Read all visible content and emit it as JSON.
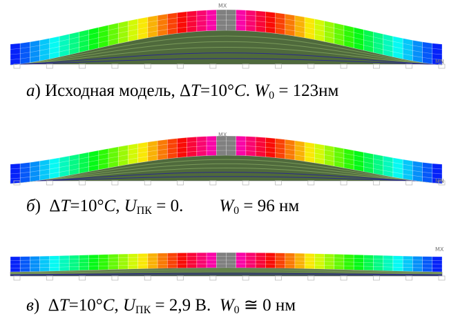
{
  "panels": [
    {
      "labels": [
        "MX",
        "MN"
      ],
      "caption": [
        "а",
        ") Исходная модель, Δ",
        "T",
        "=10°",
        "C",
        ". ",
        "W",
        "0",
        " = 123нм"
      ]
    },
    {
      "labels": [
        "MX",
        "MN"
      ],
      "caption": [
        "б",
        ")  Δ",
        "T",
        "=10°",
        "C",
        ", ",
        "U",
        "ПК",
        " = 0.",
        "W",
        "0",
        " = 96 нм"
      ]
    },
    {
      "labels": [
        "MX"
      ],
      "caption": [
        "в",
        ")  Δ",
        "T",
        "=10°",
        "C",
        ", ",
        "U",
        "ПК",
        " = 2,9 В.  ",
        "W",
        "0",
        " ≅ 0 нм"
      ]
    }
  ]
}
